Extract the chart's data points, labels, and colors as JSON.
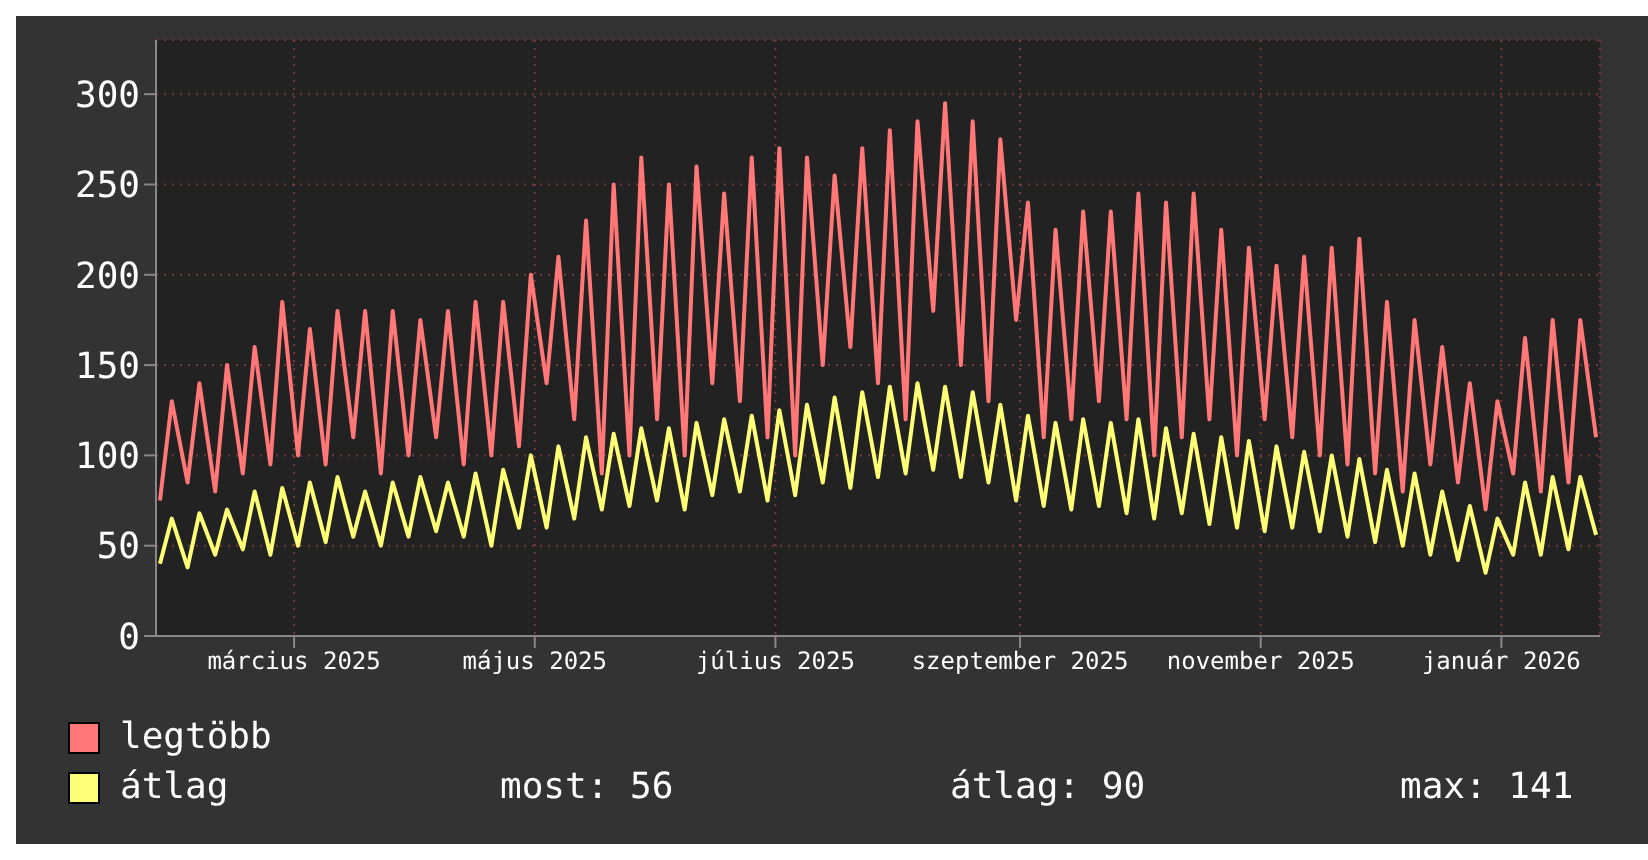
{
  "chart_data": {
    "type": "line",
    "legend": "bottom",
    "grid": true,
    "line_style": "solid",
    "annotations": [
      "most: 56",
      "átlag: 90",
      "max: 141"
    ],
    "xlim": [
      "2025-01-25",
      "2026-01-26"
    ],
    "xticks": [
      {
        "value": "2025-03-01",
        "label": "március 2025"
      },
      {
        "value": "2025-05-01",
        "label": "május 2025"
      },
      {
        "value": "2025-07-01",
        "label": "július 2025"
      },
      {
        "value": "2025-09-01",
        "label": "szeptember 2025"
      },
      {
        "value": "2025-11-01",
        "label": "november 2025"
      },
      {
        "value": "2026-01-01",
        "label": "január 2026"
      }
    ],
    "ylim": [
      0,
      330
    ],
    "yticks": [
      0,
      50,
      100,
      150,
      200,
      250,
      300
    ],
    "x": [
      "2025-01-26",
      "2025-01-29",
      "2025-02-02",
      "2025-02-05",
      "2025-02-09",
      "2025-02-12",
      "2025-02-16",
      "2025-02-19",
      "2025-02-23",
      "2025-02-26",
      "2025-03-02",
      "2025-03-05",
      "2025-03-09",
      "2025-03-12",
      "2025-03-16",
      "2025-03-19",
      "2025-03-23",
      "2025-03-26",
      "2025-03-30",
      "2025-04-02",
      "2025-04-06",
      "2025-04-09",
      "2025-04-13",
      "2025-04-16",
      "2025-04-20",
      "2025-04-23",
      "2025-04-27",
      "2025-04-30",
      "2025-05-04",
      "2025-05-07",
      "2025-05-11",
      "2025-05-14",
      "2025-05-18",
      "2025-05-21",
      "2025-05-25",
      "2025-05-28",
      "2025-06-01",
      "2025-06-04",
      "2025-06-08",
      "2025-06-11",
      "2025-06-15",
      "2025-06-18",
      "2025-06-22",
      "2025-06-25",
      "2025-06-29",
      "2025-07-02",
      "2025-07-06",
      "2025-07-09",
      "2025-07-13",
      "2025-07-16",
      "2025-07-20",
      "2025-07-23",
      "2025-07-27",
      "2025-07-30",
      "2025-08-03",
      "2025-08-06",
      "2025-08-10",
      "2025-08-13",
      "2025-08-17",
      "2025-08-20",
      "2025-08-24",
      "2025-08-27",
      "2025-08-31",
      "2025-09-03",
      "2025-09-07",
      "2025-09-10",
      "2025-09-14",
      "2025-09-17",
      "2025-09-21",
      "2025-09-24",
      "2025-09-28",
      "2025-10-01",
      "2025-10-05",
      "2025-10-08",
      "2025-10-12",
      "2025-10-15",
      "2025-10-19",
      "2025-10-22",
      "2025-10-26",
      "2025-10-29",
      "2025-11-02",
      "2025-11-05",
      "2025-11-09",
      "2025-11-12",
      "2025-11-16",
      "2025-11-19",
      "2025-11-23",
      "2025-11-26",
      "2025-11-30",
      "2025-12-03",
      "2025-12-07",
      "2025-12-10",
      "2025-12-14",
      "2025-12-17",
      "2025-12-21",
      "2025-12-24",
      "2025-12-28",
      "2025-12-31",
      "2026-01-04",
      "2026-01-07",
      "2026-01-11",
      "2026-01-14",
      "2026-01-18",
      "2026-01-21",
      "2026-01-25"
    ],
    "series": [
      {
        "name": "legtöbb",
        "color": "#ff7777",
        "values": [
          75,
          130,
          85,
          140,
          80,
          150,
          90,
          160,
          95,
          185,
          100,
          170,
          95,
          180,
          110,
          180,
          90,
          180,
          100,
          175,
          110,
          180,
          95,
          185,
          100,
          185,
          105,
          200,
          140,
          210,
          120,
          230,
          90,
          250,
          100,
          265,
          120,
          250,
          100,
          260,
          140,
          245,
          130,
          265,
          110,
          270,
          100,
          265,
          150,
          255,
          160,
          270,
          140,
          280,
          120,
          285,
          180,
          295,
          150,
          285,
          130,
          275,
          175,
          240,
          110,
          225,
          120,
          235,
          130,
          235,
          120,
          245,
          100,
          240,
          110,
          245,
          120,
          225,
          100,
          215,
          120,
          205,
          110,
          210,
          100,
          215,
          95,
          220,
          90,
          185,
          80,
          175,
          95,
          160,
          85,
          140,
          70,
          130,
          90,
          165,
          80,
          175,
          85,
          175,
          110
        ]
      },
      {
        "name": "átlag",
        "color": "#ffff77",
        "values": [
          40,
          65,
          38,
          68,
          45,
          70,
          48,
          80,
          45,
          82,
          50,
          85,
          52,
          88,
          55,
          80,
          50,
          85,
          55,
          88,
          58,
          85,
          55,
          90,
          50,
          92,
          60,
          100,
          60,
          105,
          65,
          110,
          70,
          112,
          72,
          115,
          75,
          115,
          70,
          118,
          78,
          120,
          80,
          122,
          75,
          125,
          78,
          128,
          85,
          132,
          82,
          135,
          88,
          138,
          90,
          140,
          92,
          138,
          88,
          135,
          85,
          128,
          75,
          122,
          72,
          118,
          70,
          120,
          72,
          118,
          68,
          120,
          65,
          115,
          68,
          112,
          62,
          110,
          60,
          108,
          58,
          105,
          60,
          102,
          58,
          100,
          55,
          98,
          52,
          92,
          50,
          90,
          45,
          80,
          42,
          72,
          35,
          65,
          45,
          85,
          45,
          88,
          48,
          88,
          56
        ]
      }
    ]
  }
}
